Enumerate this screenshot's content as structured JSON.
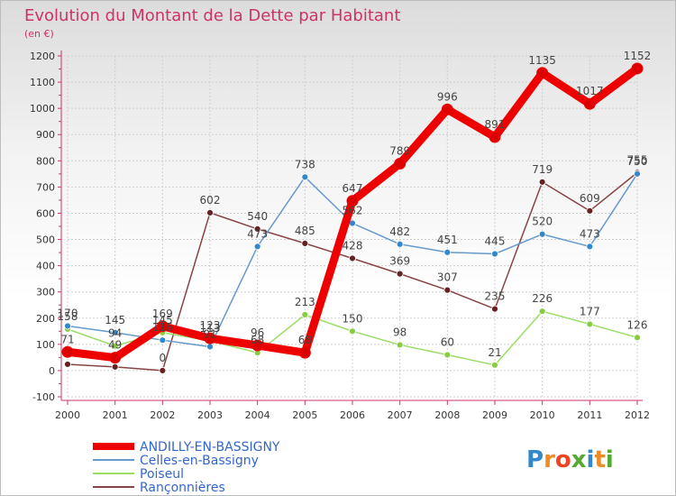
{
  "chart_data": {
    "type": "line",
    "title": "Evolution du Montant de la Dette par Habitant",
    "unit": "(en €)",
    "x": [
      "2000",
      "2001",
      "2002",
      "2003",
      "2004",
      "2005",
      "2006",
      "2007",
      "2008",
      "2009",
      "2010",
      "2011",
      "2012"
    ],
    "ylim": [
      -100,
      1200
    ],
    "yticks": [
      "-100",
      "0",
      "100",
      "200",
      "300",
      "400",
      "500",
      "600",
      "700",
      "800",
      "900",
      "1000",
      "1100",
      "1200"
    ],
    "grid": true,
    "legend_position": "bottom-left",
    "series": [
      {
        "name": "ANDILLY-EN-BASSIGNY",
        "color": "#ee0000",
        "marker_color": "#dd0000",
        "values": [
          71,
          49,
          169,
          123,
          96,
          68,
          647,
          789,
          996,
          891,
          1135,
          1017,
          1152
        ],
        "labels": [
          "71",
          "49",
          "169",
          "123",
          "96",
          "68",
          "647",
          "789",
          "996",
          "891",
          "1135",
          "1017",
          "1152"
        ]
      },
      {
        "name": "Celles-en-Bassigny",
        "color": "#6699cc",
        "marker_color": "#3388cc",
        "values": [
          170,
          145,
          116,
          91,
          473,
          738,
          562,
          482,
          451,
          445,
          520,
          473,
          750
        ],
        "labels": [
          "170",
          "145",
          "116",
          "91",
          "473",
          "738",
          "562",
          "482",
          "451",
          "445",
          "520",
          "473",
          "750"
        ]
      },
      {
        "name": "Poiseul",
        "color": "#99dd66",
        "marker_color": "#88cc44",
        "values": [
          158,
          94,
          145,
          113,
          68,
          213,
          150,
          98,
          60,
          21,
          226,
          177,
          126
        ],
        "labels": [
          "158",
          "94",
          "145",
          "113",
          "68",
          "213",
          "150",
          "98",
          "60",
          "21",
          "226",
          "177",
          "126"
        ]
      },
      {
        "name": "Rançonnières",
        "color": "#884444",
        "marker_color": "#662222",
        "values": [
          24,
          14,
          0,
          602,
          540,
          485,
          428,
          369,
          307,
          235,
          719,
          609,
          755
        ],
        "labels": [
          "",
          "",
          "0",
          "602",
          "540",
          "485",
          "428",
          "369",
          "307",
          "235",
          "719",
          "609",
          "755"
        ]
      }
    ]
  },
  "brand": {
    "letters": [
      "P",
      "r",
      "o",
      "x",
      "i",
      "t",
      "i"
    ],
    "colors": [
      "#3388cc",
      "#f08a24",
      "#ee4422",
      "#55aa33",
      "#3388cc",
      "#f08a24",
      "#55aa33"
    ]
  }
}
